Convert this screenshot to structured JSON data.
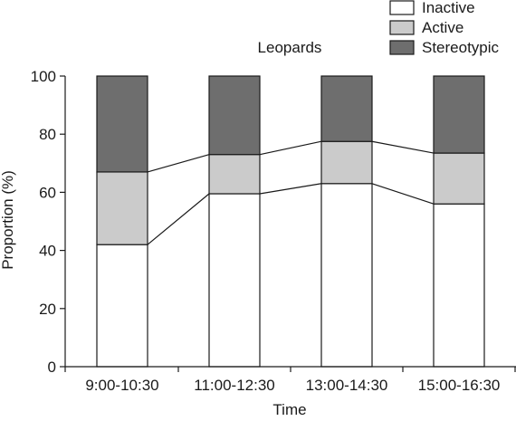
{
  "chart_data": {
    "type": "bar",
    "stacked": true,
    "title": "Leopards",
    "xlabel": "Time",
    "ylabel": "Proportion (%)",
    "ylim": [
      0,
      100
    ],
    "yticks": [
      "0",
      "20",
      "40",
      "60",
      "80",
      "100"
    ],
    "categories": [
      "9:00-10:30",
      "11:00-12:30",
      "13:00-14:30",
      "15:00-16:30"
    ],
    "series": [
      {
        "name": "Inactive",
        "values": [
          42,
          59.5,
          63,
          56
        ],
        "color": "#ffffff"
      },
      {
        "name": "Active",
        "values": [
          25,
          13.5,
          14.5,
          17.5
        ],
        "color": "#cbcbcb"
      },
      {
        "name": "Stereotypic",
        "values": [
          33,
          27,
          22.5,
          26.5
        ],
        "color": "#6e6e6e"
      }
    ],
    "connector_lines": true,
    "legend_position": "top-right",
    "grid": false
  }
}
